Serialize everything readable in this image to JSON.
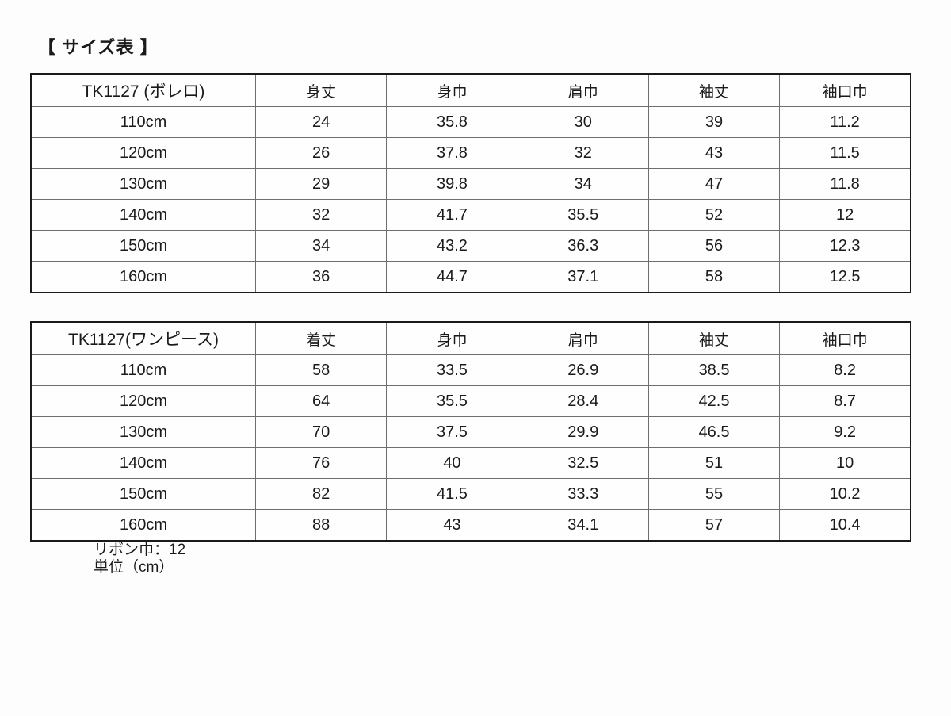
{
  "page": {
    "title": "【 サイズ表 】"
  },
  "tables": [
    {
      "name": "TK1127 (ボレロ)",
      "columns": [
        "身丈",
        "身巾",
        "肩巾",
        "袖丈",
        "袖口巾"
      ],
      "rows": [
        {
          "size": "110cm",
          "values": [
            "24",
            "35.8",
            "30",
            "39",
            "11.2"
          ]
        },
        {
          "size": "120cm",
          "values": [
            "26",
            "37.8",
            "32",
            "43",
            "11.5"
          ]
        },
        {
          "size": "130cm",
          "values": [
            "29",
            "39.8",
            "34",
            "47",
            "11.8"
          ]
        },
        {
          "size": "140cm",
          "values": [
            "32",
            "41.7",
            "35.5",
            "52",
            "12"
          ]
        },
        {
          "size": "150cm",
          "values": [
            "34",
            "43.2",
            "36.3",
            "56",
            "12.3"
          ]
        },
        {
          "size": "160cm",
          "values": [
            "36",
            "44.7",
            "37.1",
            "58",
            "12.5"
          ]
        }
      ]
    },
    {
      "name": "TK1127(ワンピース)",
      "columns": [
        "着丈",
        "身巾",
        "肩巾",
        "袖丈",
        "袖口巾"
      ],
      "rows": [
        {
          "size": "110cm",
          "values": [
            "58",
            "33.5",
            "26.9",
            "38.5",
            "8.2"
          ]
        },
        {
          "size": "120cm",
          "values": [
            "64",
            "35.5",
            "28.4",
            "42.5",
            "8.7"
          ]
        },
        {
          "size": "130cm",
          "values": [
            "70",
            "37.5",
            "29.9",
            "46.5",
            "9.2"
          ]
        },
        {
          "size": "140cm",
          "values": [
            "76",
            "40",
            "32.5",
            "51",
            "10"
          ]
        },
        {
          "size": "150cm",
          "values": [
            "82",
            "41.5",
            "33.3",
            "55",
            "10.2"
          ]
        },
        {
          "size": "160cm",
          "values": [
            "88",
            "43",
            "34.1",
            "57",
            "10.4"
          ]
        }
      ]
    }
  ],
  "notes": {
    "ribbon_width": "リボン巾：12",
    "unit": "単位（cm）"
  },
  "colors": {
    "text": "#1a1a1a",
    "outer_border": "#1a1a1a",
    "grid_line": "#6e6e6e",
    "background": "#fdfdfd"
  }
}
